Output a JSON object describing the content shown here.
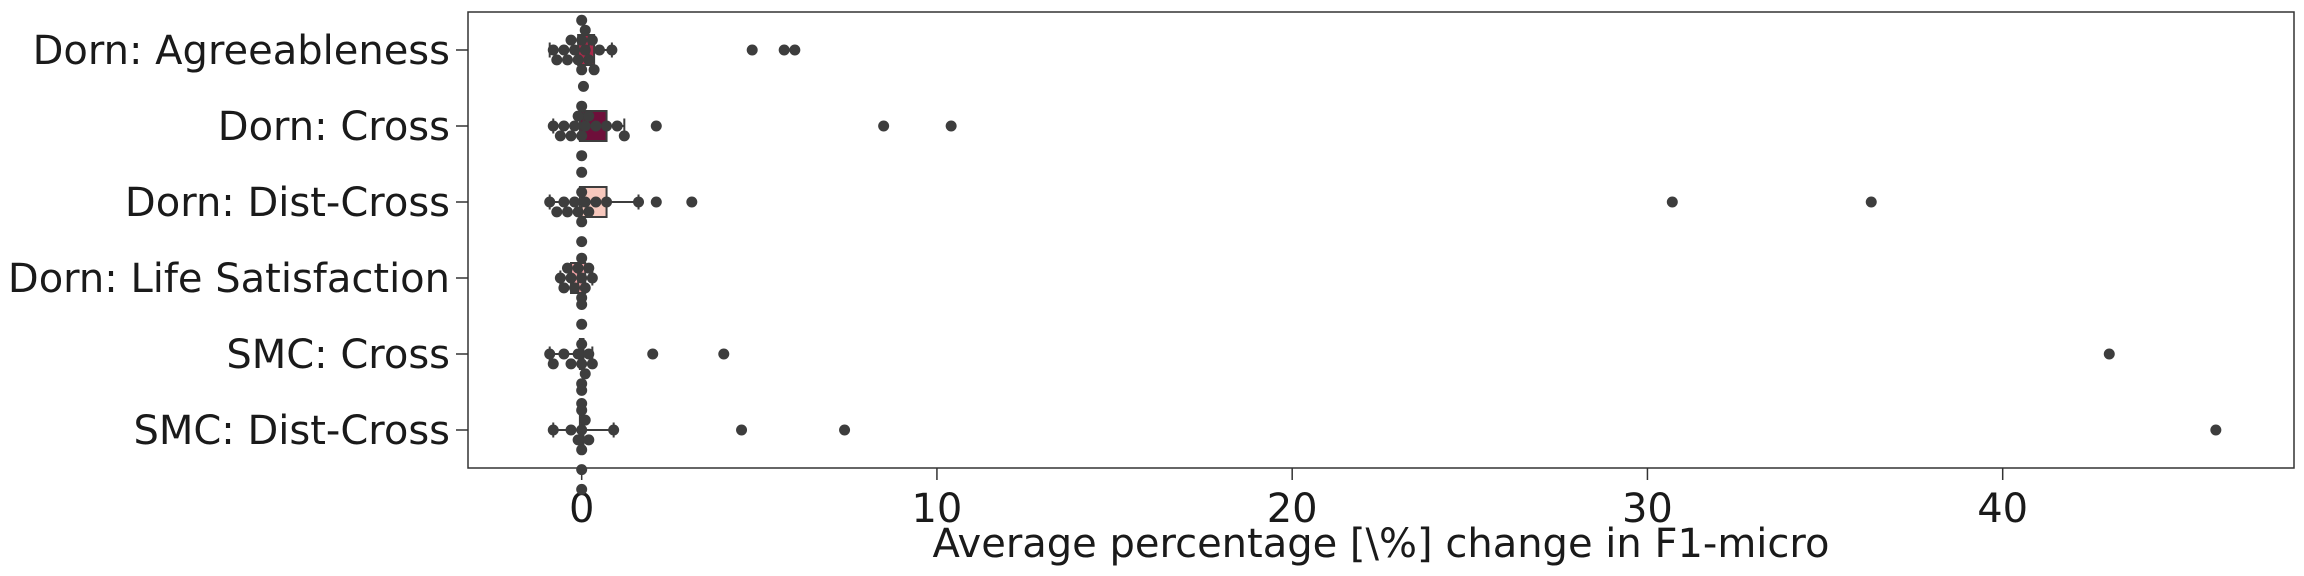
{
  "chart_data": {
    "type": "box",
    "title": "",
    "xlabel": "Average percentage [\\%] change in F1-micro",
    "ylabel": "",
    "orientation": "horizontal",
    "xlim": [
      -3.2,
      48.2
    ],
    "xticks": [
      0,
      10,
      20,
      30,
      40
    ],
    "xtick_labels": [
      "0",
      "10",
      "20",
      "30",
      "40"
    ],
    "grid": false,
    "legend": "none",
    "categories": [
      {
        "label": "Dorn: Agreeableness",
        "color": "#a82a4a",
        "box": {
          "whisker_low": -0.9,
          "q1": -0.1,
          "median": 0.2,
          "q3": 0.35,
          "whisker_high": 0.85
        },
        "outliers": [
          4.8,
          5.7,
          6.0
        ],
        "points": [
          -0.8,
          -0.7,
          -0.5,
          -0.4,
          -0.3,
          -0.2,
          -0.1,
          0.0,
          0.0,
          0.0,
          0.1,
          0.1,
          0.2,
          0.3,
          0.35,
          0.5,
          0.85,
          4.8,
          5.7,
          6.0
        ]
      },
      {
        "label": "Dorn: Cross",
        "color": "#6e0f3a",
        "box": {
          "whisker_low": -0.8,
          "q1": -0.05,
          "median": 0.05,
          "q3": 0.7,
          "whisker_high": 1.2
        },
        "outliers": [
          2.1,
          8.5,
          10.4
        ],
        "points": [
          -0.8,
          -0.6,
          -0.5,
          -0.3,
          -0.2,
          -0.1,
          0.0,
          0.0,
          0.0,
          0.05,
          0.1,
          0.2,
          0.4,
          0.7,
          1.0,
          1.2,
          2.1,
          8.5,
          10.4
        ]
      },
      {
        "label": "Dorn: Dist-Cross",
        "color": "#f7c8bd",
        "box": {
          "whisker_low": -0.9,
          "q1": -0.05,
          "median": 0.0,
          "q3": 0.7,
          "whisker_high": 1.6
        },
        "outliers": [
          2.1,
          3.1,
          30.7,
          36.3
        ],
        "points": [
          -0.9,
          -0.7,
          -0.5,
          -0.4,
          -0.2,
          -0.1,
          0.0,
          0.0,
          0.0,
          0.0,
          0.1,
          0.2,
          0.4,
          0.7,
          1.6,
          2.1,
          3.1,
          30.7,
          36.3
        ]
      },
      {
        "label": "Dorn: Life Satisfaction",
        "color": "#f2a1a5",
        "box": {
          "whisker_low": -0.6,
          "q1": -0.3,
          "median": -0.1,
          "q3": 0.1,
          "whisker_high": 0.3
        },
        "outliers": [],
        "points": [
          -0.6,
          -0.5,
          -0.4,
          -0.3,
          -0.2,
          -0.1,
          0.0,
          0.0,
          0.0,
          0.1,
          0.2,
          0.3
        ]
      },
      {
        "label": "SMC: Cross",
        "color": "#d0a0a6",
        "box": {
          "whisker_low": -0.9,
          "q1": -0.05,
          "median": 0.0,
          "q3": 0.05,
          "whisker_high": 0.3
        },
        "outliers": [
          2.0,
          4.0,
          43.0
        ],
        "points": [
          -0.9,
          -0.8,
          -0.5,
          -0.3,
          -0.1,
          0.0,
          0.0,
          0.0,
          0.0,
          0.0,
          0.0,
          0.1,
          0.2,
          0.3,
          2.0,
          4.0,
          43.0
        ]
      },
      {
        "label": "SMC: Dist-Cross",
        "color": "#d0a0a6",
        "box": {
          "whisker_low": -0.8,
          "q1": -0.05,
          "median": 0.0,
          "q3": 0.05,
          "whisker_high": 0.9
        },
        "outliers": [
          4.5,
          7.4,
          46.0
        ],
        "points": [
          -0.8,
          -0.3,
          -0.1,
          0.0,
          0.0,
          0.0,
          0.0,
          0.0,
          0.0,
          0.1,
          0.2,
          0.9,
          4.5,
          7.4,
          46.0
        ]
      }
    ]
  }
}
